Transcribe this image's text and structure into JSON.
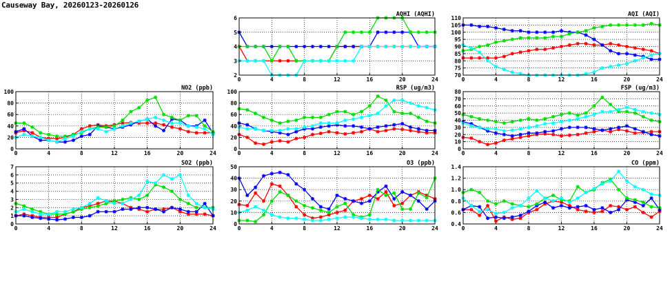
{
  "page": {
    "title": "Causeway Bay, 20260123-20260126"
  },
  "colors": {
    "day1": "#ff0000",
    "day2": "#0000ff",
    "day3": "#00dd00",
    "day4": "#00ffff"
  },
  "chart_data": [
    {
      "id": "aqhi",
      "type": "line",
      "title": "AQHI (AQHI)",
      "xlim": [
        0,
        24
      ],
      "ylim": [
        2,
        6
      ],
      "xticks": [
        "0",
        "4",
        "8",
        "12",
        "16",
        "20",
        "24"
      ],
      "yticks": [
        "2",
        "3",
        "4",
        "5",
        "6"
      ],
      "grid": true,
      "series": [
        {
          "color": "#ff0000",
          "values": [
            4,
            3,
            3,
            3,
            3,
            3,
            3,
            3,
            3,
            3,
            3,
            3,
            4,
            4,
            4,
            4,
            4,
            4,
            4,
            4,
            4,
            4,
            4,
            4,
            4
          ]
        },
        {
          "color": "#0000ff",
          "values": [
            5,
            4,
            4,
            4,
            4,
            4,
            4,
            4,
            4,
            4,
            4,
            4,
            4,
            4,
            4,
            4,
            4,
            5,
            5,
            5,
            5,
            5,
            4,
            4,
            4
          ]
        },
        {
          "color": "#00dd00",
          "values": [
            4,
            4,
            4,
            4,
            3,
            4,
            4,
            3,
            3,
            3,
            3,
            3,
            4,
            5,
            5,
            5,
            5,
            6,
            6,
            6,
            6,
            5,
            5,
            5,
            5
          ]
        },
        {
          "color": "#00ffff",
          "values": [
            3,
            3,
            3,
            3,
            2,
            2,
            2,
            2,
            3,
            3,
            3,
            3,
            3,
            3,
            3,
            4,
            4,
            4,
            4,
            4,
            4,
            4,
            4,
            4,
            4
          ]
        }
      ]
    },
    {
      "id": "aqi",
      "type": "line",
      "title": "AQI (AQI)",
      "xlim": [
        0,
        24
      ],
      "ylim": [
        70,
        110
      ],
      "xticks": [
        "0",
        "4",
        "8",
        "12",
        "16",
        "20",
        "24"
      ],
      "yticks": [
        "70",
        "75",
        "80",
        "85",
        "90",
        "95",
        "100",
        "105",
        "110"
      ],
      "grid": true,
      "series": [
        {
          "color": "#ff0000",
          "values": [
            82,
            82,
            82,
            82,
            82,
            83,
            85,
            86,
            87,
            88,
            88,
            89,
            90,
            91,
            92,
            92,
            91,
            91,
            92,
            91,
            90,
            89,
            88,
            87,
            85
          ]
        },
        {
          "color": "#0000ff",
          "values": [
            105,
            105,
            104,
            104,
            103,
            102,
            101,
            101,
            100,
            100,
            100,
            100,
            101,
            100,
            100,
            98,
            95,
            91,
            87,
            85,
            85,
            84,
            83,
            81,
            81
          ]
        },
        {
          "color": "#00dd00",
          "values": [
            87,
            88,
            90,
            91,
            93,
            94,
            95,
            96,
            96,
            96,
            96,
            97,
            97,
            99,
            100,
            101,
            103,
            104,
            105,
            105,
            105,
            105,
            105,
            106,
            105
          ]
        },
        {
          "color": "#00ffff",
          "values": [
            91,
            89,
            86,
            80,
            76,
            74,
            72,
            71,
            70,
            70,
            70,
            70,
            70,
            70,
            70,
            71,
            72,
            75,
            76,
            77,
            78,
            80,
            82,
            84,
            85
          ]
        }
      ]
    },
    {
      "id": "no2",
      "type": "line",
      "title": "NO2 (ppb)",
      "xlim": [
        0,
        24
      ],
      "ylim": [
        0,
        100
      ],
      "xticks": [
        "0",
        "4",
        "8",
        "12",
        "16",
        "20",
        "24"
      ],
      "yticks": [
        "0",
        "20",
        "40",
        "60",
        "80",
        "100"
      ],
      "grid": true,
      "series": [
        {
          "color": "#ff0000",
          "values": [
            28,
            32,
            28,
            20,
            18,
            18,
            20,
            25,
            35,
            40,
            42,
            40,
            42,
            45,
            46,
            45,
            45,
            45,
            42,
            38,
            35,
            30,
            28,
            28,
            28
          ]
        },
        {
          "color": "#0000ff",
          "values": [
            30,
            35,
            22,
            15,
            15,
            12,
            12,
            15,
            22,
            25,
            40,
            38,
            35,
            38,
            42,
            48,
            52,
            40,
            32,
            52,
            50,
            40,
            40,
            50,
            28
          ]
        },
        {
          "color": "#00dd00",
          "values": [
            45,
            45,
            38,
            28,
            25,
            22,
            22,
            25,
            28,
            35,
            38,
            38,
            40,
            50,
            65,
            72,
            85,
            90,
            60,
            55,
            50,
            58,
            58,
            40,
            30
          ]
        },
        {
          "color": "#00ffff",
          "values": [
            20,
            25,
            22,
            20,
            15,
            12,
            18,
            22,
            30,
            35,
            35,
            30,
            35,
            40,
            45,
            48,
            52,
            55,
            50,
            45,
            45,
            40,
            38,
            35,
            25
          ]
        }
      ]
    },
    {
      "id": "rsp",
      "type": "line",
      "title": "RSP (ug/m3)",
      "xlim": [
        0,
        24
      ],
      "ylim": [
        0,
        100
      ],
      "xticks": [
        "0",
        "4",
        "8",
        "12",
        "16",
        "20",
        "24"
      ],
      "yticks": [
        "0",
        "20",
        "40",
        "60",
        "80",
        "100"
      ],
      "grid": true,
      "series": [
        {
          "color": "#ff0000",
          "values": [
            25,
            20,
            10,
            8,
            12,
            14,
            12,
            18,
            20,
            25,
            27,
            30,
            28,
            26,
            28,
            30,
            35,
            30,
            32,
            35,
            34,
            32,
            30,
            28,
            28
          ]
        },
        {
          "color": "#0000ff",
          "values": [
            45,
            42,
            35,
            32,
            30,
            28,
            25,
            30,
            35,
            35,
            38,
            40,
            42,
            40,
            40,
            38,
            35,
            38,
            40,
            42,
            44,
            38,
            35,
            32,
            32
          ]
        },
        {
          "color": "#00dd00",
          "values": [
            70,
            68,
            62,
            55,
            50,
            45,
            48,
            50,
            55,
            55,
            55,
            60,
            65,
            65,
            60,
            65,
            75,
            92,
            85,
            65,
            62,
            62,
            55,
            48,
            45
          ]
        },
        {
          "color": "#00ffff",
          "values": [
            38,
            35,
            35,
            32,
            32,
            32,
            35,
            35,
            38,
            40,
            45,
            45,
            45,
            50,
            52,
            55,
            58,
            62,
            75,
            85,
            85,
            80,
            75,
            72,
            68
          ]
        }
      ]
    },
    {
      "id": "fsp",
      "type": "line",
      "title": "FSP (ug/m3)",
      "xlim": [
        0,
        24
      ],
      "ylim": [
        0,
        80
      ],
      "xticks": [
        "0",
        "4",
        "8",
        "12",
        "16",
        "20",
        "24"
      ],
      "yticks": [
        "0",
        "10",
        "20",
        "30",
        "40",
        "50",
        "60",
        "70",
        "80"
      ],
      "grid": true,
      "series": [
        {
          "color": "#ff0000",
          "values": [
            16,
            15,
            10,
            6,
            8,
            12,
            14,
            16,
            18,
            20,
            21,
            20,
            18,
            19,
            20,
            22,
            24,
            26,
            24,
            27,
            25,
            22,
            23,
            24,
            24
          ]
        },
        {
          "color": "#0000ff",
          "values": [
            38,
            35,
            30,
            25,
            22,
            20,
            18,
            20,
            22,
            22,
            24,
            25,
            28,
            30,
            30,
            30,
            28,
            26,
            28,
            30,
            32,
            28,
            24,
            20,
            18
          ]
        },
        {
          "color": "#00dd00",
          "values": [
            48,
            45,
            42,
            40,
            38,
            36,
            38,
            40,
            42,
            40,
            42,
            45,
            48,
            50,
            47,
            50,
            60,
            72,
            62,
            52,
            52,
            50,
            45,
            40,
            38
          ]
        },
        {
          "color": "#00ffff",
          "values": [
            36,
            32,
            30,
            28,
            28,
            25,
            26,
            28,
            30,
            32,
            35,
            36,
            38,
            40,
            42,
            45,
            48,
            52,
            52,
            55,
            58,
            55,
            52,
            50,
            48
          ]
        }
      ]
    },
    {
      "id": "so2",
      "type": "line",
      "title": "SO2 (ppb)",
      "xlim": [
        0,
        24
      ],
      "ylim": [
        0,
        7
      ],
      "xticks": [
        "0",
        "4",
        "8",
        "12",
        "16",
        "20",
        "24"
      ],
      "yticks": [
        "0",
        "1",
        "2",
        "3",
        "4",
        "5",
        "6",
        "7"
      ],
      "grid": true,
      "series": [
        {
          "color": "#ff0000",
          "values": [
            1.0,
            1.2,
            1.0,
            0.8,
            0.8,
            0.8,
            1.2,
            1.5,
            2.0,
            2.2,
            2.5,
            2.8,
            2.8,
            2.5,
            2.0,
            1.8,
            1.5,
            1.8,
            1.8,
            2.0,
            1.5,
            1.2,
            1.2,
            1.2,
            1.0
          ]
        },
        {
          "color": "#0000ff",
          "values": [
            1.0,
            1.0,
            0.8,
            0.7,
            0.6,
            0.5,
            0.6,
            0.8,
            0.8,
            1.0,
            1.5,
            1.5,
            1.5,
            1.8,
            1.8,
            2.0,
            2.0,
            1.8,
            1.5,
            2.0,
            1.8,
            1.5,
            1.5,
            2.5,
            1.0
          ]
        },
        {
          "color": "#00dd00",
          "values": [
            2.5,
            2.2,
            1.8,
            1.5,
            1.2,
            1.2,
            1.2,
            1.5,
            1.8,
            2.0,
            2.2,
            2.5,
            2.8,
            3.0,
            3.2,
            3.0,
            3.5,
            4.8,
            4.5,
            4.0,
            3.0,
            2.5,
            2.0,
            2.0,
            2.0
          ]
        },
        {
          "color": "#00ffff",
          "values": [
            1.5,
            1.8,
            1.5,
            1.2,
            1.2,
            1.5,
            1.5,
            1.8,
            2.0,
            2.5,
            3.2,
            2.8,
            2.5,
            2.5,
            3.0,
            3.5,
            5.2,
            5.0,
            6.0,
            5.5,
            6.0,
            3.5,
            2.5,
            2.0,
            1.8
          ]
        }
      ]
    },
    {
      "id": "o3",
      "type": "line",
      "title": "O3 (ppb)",
      "xlim": [
        0,
        24
      ],
      "ylim": [
        0,
        50
      ],
      "xticks": [
        "0",
        "4",
        "8",
        "12",
        "16",
        "20",
        "24"
      ],
      "yticks": [
        "0",
        "10",
        "20",
        "30",
        "40",
        "50"
      ],
      "grid": true,
      "series": [
        {
          "color": "#ff0000",
          "values": [
            17,
            16,
            27,
            20,
            35,
            33,
            25,
            15,
            8,
            5,
            6,
            8,
            10,
            12,
            20,
            22,
            25,
            22,
            28,
            16,
            18,
            25,
            28,
            25,
            22
          ]
        },
        {
          "color": "#0000ff",
          "values": [
            40,
            25,
            32,
            42,
            44,
            45,
            43,
            35,
            30,
            22,
            15,
            13,
            25,
            22,
            20,
            18,
            20,
            28,
            33,
            22,
            28,
            25,
            20,
            13,
            20
          ]
        },
        {
          "color": "#00dd00",
          "values": [
            3,
            3,
            2,
            8,
            20,
            28,
            25,
            20,
            16,
            14,
            12,
            10,
            15,
            18,
            8,
            6,
            8,
            30,
            25,
            27,
            13,
            13,
            27,
            23,
            40
          ]
        },
        {
          "color": "#00ffff",
          "values": [
            10,
            12,
            15,
            12,
            8,
            6,
            5,
            5,
            4,
            3,
            3,
            4,
            5,
            6,
            6,
            5,
            4,
            4,
            4,
            3,
            3,
            3,
            3,
            3,
            3
          ]
        }
      ]
    },
    {
      "id": "co",
      "type": "line",
      "title": "CO (ppm)",
      "xlim": [
        0,
        24
      ],
      "ylim": [
        0.4,
        1.4
      ],
      "xticks": [
        "0",
        "4",
        "8",
        "12",
        "16",
        "20",
        "24"
      ],
      "yticks": [
        "0.4",
        "0.6",
        "0.8",
        "1.0",
        "1.2",
        "1.4"
      ],
      "grid": true,
      "series": [
        {
          "color": "#ff0000",
          "values": [
            0.65,
            0.65,
            0.55,
            0.72,
            0.45,
            0.52,
            0.48,
            0.5,
            0.6,
            0.65,
            0.75,
            0.8,
            0.78,
            0.72,
            0.65,
            0.62,
            0.6,
            0.62,
            0.72,
            0.7,
            0.65,
            0.7,
            0.6,
            0.52,
            0.62
          ]
        },
        {
          "color": "#0000ff",
          "values": [
            0.65,
            0.72,
            0.7,
            0.5,
            0.52,
            0.5,
            0.52,
            0.55,
            0.62,
            0.72,
            0.78,
            0.68,
            0.72,
            0.68,
            0.7,
            0.72,
            0.65,
            0.68,
            0.6,
            0.65,
            0.82,
            0.78,
            0.72,
            0.85,
            0.65
          ]
        },
        {
          "color": "#00dd00",
          "values": [
            0.95,
            1.0,
            0.95,
            0.8,
            0.75,
            0.8,
            0.75,
            0.72,
            0.7,
            0.75,
            0.85,
            0.9,
            0.82,
            0.8,
            1.05,
            0.95,
            1.0,
            1.12,
            1.18,
            1.0,
            0.85,
            0.82,
            0.78,
            0.7,
            0.68
          ]
        },
        {
          "color": "#00ffff",
          "values": [
            0.85,
            0.72,
            0.62,
            0.65,
            0.58,
            0.6,
            0.68,
            0.72,
            0.85,
            0.98,
            0.85,
            0.8,
            0.85,
            0.78,
            0.85,
            0.95,
            1.02,
            1.1,
            1.15,
            1.32,
            1.15,
            1.05,
            1.0,
            0.92,
            0.9
          ]
        }
      ]
    }
  ]
}
